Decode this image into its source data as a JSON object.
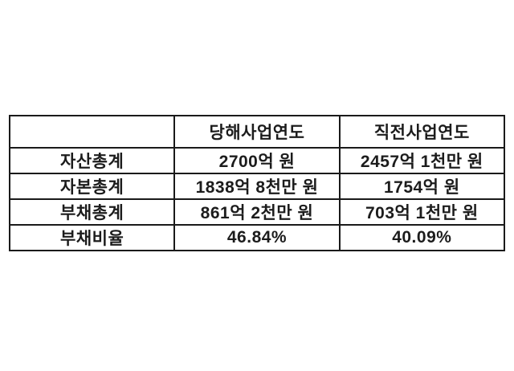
{
  "table": {
    "columns": [
      {
        "label": ""
      },
      {
        "label": "당해사업연도"
      },
      {
        "label": "직전사업연도"
      }
    ],
    "rows": [
      {
        "label": "자산총계",
        "current": "2700억 원",
        "previous": "2457억 1천만 원"
      },
      {
        "label": "자본총계",
        "current": "1838억 8천만 원",
        "previous": "1754억 원"
      },
      {
        "label": "부채총계",
        "current": "861억 2천만 원",
        "previous": "703억 1천만 원"
      },
      {
        "label": "부채비율",
        "current": "46.84%",
        "previous": "40.09%"
      }
    ]
  },
  "colors": {
    "border": "#1a1a1a",
    "text": "#1c1c1c",
    "background": "#ffffff"
  }
}
